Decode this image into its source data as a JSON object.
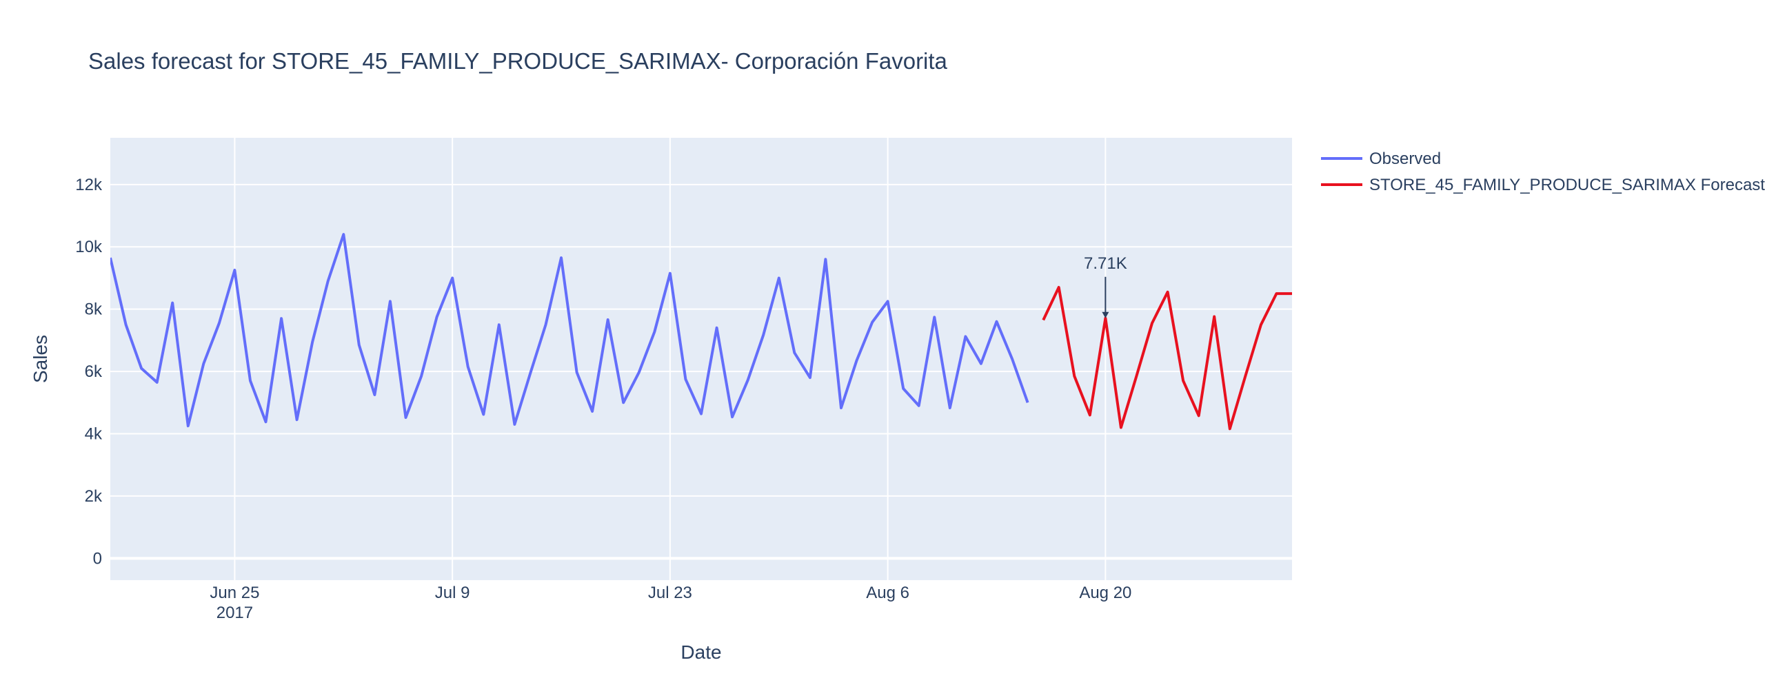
{
  "chart_data": {
    "type": "line",
    "title": "Sales forecast for STORE_45_FAMILY_PRODUCE_SARIMAX- Corporación Favorita",
    "xlabel": "Date",
    "ylabel": "Sales",
    "x_range": [
      "2017-06-17",
      "2017-09-01"
    ],
    "ylim": [
      -700,
      13500
    ],
    "y_ticks": [
      0,
      2000,
      4000,
      6000,
      8000,
      10000,
      12000
    ],
    "y_tick_labels": [
      "0",
      "2k",
      "4k",
      "6k",
      "8k",
      "10k",
      "12k"
    ],
    "x_ticks": [
      {
        "date": "2017-06-25",
        "label": "Jun 25",
        "sublabel": "2017"
      },
      {
        "date": "2017-07-09",
        "label": "Jul 9",
        "sublabel": ""
      },
      {
        "date": "2017-07-23",
        "label": "Jul 23",
        "sublabel": ""
      },
      {
        "date": "2017-08-06",
        "label": "Aug 6",
        "sublabel": ""
      },
      {
        "date": "2017-08-20",
        "label": "Aug 20",
        "sublabel": ""
      }
    ],
    "grid": true,
    "legend_position": "right",
    "series": [
      {
        "name": "Observed",
        "color": "#636efa",
        "x": [
          "2017-06-17",
          "2017-06-18",
          "2017-06-19",
          "2017-06-20",
          "2017-06-21",
          "2017-06-22",
          "2017-06-23",
          "2017-06-24",
          "2017-06-25",
          "2017-06-26",
          "2017-06-27",
          "2017-06-28",
          "2017-06-29",
          "2017-06-30",
          "2017-07-01",
          "2017-07-02",
          "2017-07-03",
          "2017-07-04",
          "2017-07-05",
          "2017-07-06",
          "2017-07-07",
          "2017-07-08",
          "2017-07-09",
          "2017-07-10",
          "2017-07-11",
          "2017-07-12",
          "2017-07-13",
          "2017-07-14",
          "2017-07-15",
          "2017-07-16",
          "2017-07-17",
          "2017-07-18",
          "2017-07-19",
          "2017-07-20",
          "2017-07-21",
          "2017-07-22",
          "2017-07-23",
          "2017-07-24",
          "2017-07-25",
          "2017-07-26",
          "2017-07-27",
          "2017-07-28",
          "2017-07-29",
          "2017-07-30",
          "2017-07-31",
          "2017-08-01",
          "2017-08-02",
          "2017-08-03",
          "2017-08-04",
          "2017-08-05",
          "2017-08-06",
          "2017-08-07",
          "2017-08-08",
          "2017-08-09",
          "2017-08-10",
          "2017-08-11",
          "2017-08-12",
          "2017-08-13",
          "2017-08-14",
          "2017-08-15"
        ],
        "y": [
          9650,
          7500,
          6100,
          5650,
          8200,
          4250,
          6250,
          7550,
          9250,
          5700,
          4380,
          7700,
          4450,
          6950,
          8900,
          10400,
          6850,
          5250,
          8250,
          4520,
          5850,
          7750,
          9000,
          6150,
          4620,
          7500,
          4300,
          5920,
          7500,
          9650,
          5970,
          4720,
          7660,
          5000,
          5970,
          7270,
          9150,
          5750,
          4640,
          7400,
          4540,
          5720,
          7170,
          9000,
          6600,
          5800,
          9600,
          4830,
          6350,
          7580,
          8250,
          5450,
          4900,
          7740,
          4830,
          7120,
          6250,
          7600,
          6400,
          5000
        ]
      },
      {
        "name": "STORE_45_FAMILY_PRODUCE_SARIMAX Forecast",
        "color": "#e8111f",
        "x": [
          "2017-08-16",
          "2017-08-17",
          "2017-08-18",
          "2017-08-19",
          "2017-08-20",
          "2017-08-21",
          "2017-08-22",
          "2017-08-23",
          "2017-08-24",
          "2017-08-25",
          "2017-08-26",
          "2017-08-27",
          "2017-08-28",
          "2017-08-29",
          "2017-08-30",
          "2017-08-31",
          "2017-09-01"
        ],
        "y": [
          7650,
          8700,
          5850,
          4600,
          7710,
          4200,
          5860,
          7550,
          8550,
          5700,
          4580,
          7760,
          4160,
          5850,
          7500,
          8500,
          8500
        ]
      }
    ],
    "annotations": [
      {
        "x": "2017-08-20",
        "y": 7710,
        "text": "7.71K"
      }
    ]
  }
}
